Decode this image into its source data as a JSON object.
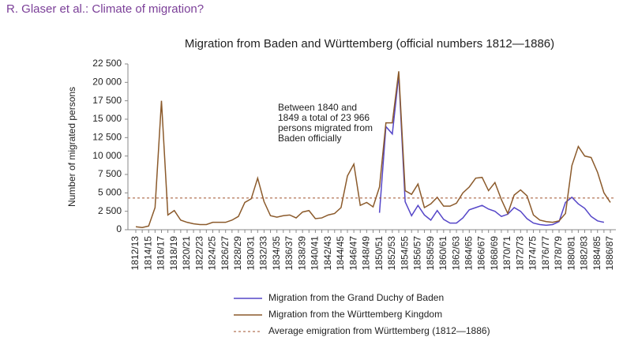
{
  "header": "R. Glaser et al.: Climate of migration?",
  "chart_data": {
    "type": "line",
    "title": "Migration from Baden and Württemberg (official numbers 1812—1886)",
    "y_label": "Number of migrated persons",
    "annotation": [
      "Between  1840 and",
      "1849 a total of 23 966",
      "persons migrated from",
      "Baden officially"
    ],
    "categories": [
      "1812/13",
      null,
      "1814/15",
      null,
      "1816/17",
      null,
      "1818/19",
      null,
      "1820/21",
      null,
      "1822/23",
      null,
      "1824/25",
      null,
      "1826/27",
      null,
      "1828/29",
      null,
      "1830/31",
      null,
      "1832/33",
      null,
      "1834/35",
      null,
      "1836/37",
      null,
      "1838/39",
      null,
      "1840/41",
      null,
      "1842/43",
      null,
      "1844/45",
      null,
      "1846/47",
      null,
      "1848/49",
      null,
      "1850/51",
      null,
      "1852/53",
      null,
      "1854/55",
      null,
      "1856/57",
      null,
      "1858/59",
      null,
      "1860/61",
      null,
      "1862/63",
      null,
      "1864/65",
      null,
      "1866/67",
      null,
      "1868/69",
      null,
      "1870/71",
      null,
      "1872/73",
      null,
      "1874/75",
      null,
      "1876/77",
      null,
      "1878/79",
      null,
      "1880/81",
      null,
      "1882/83",
      null,
      "1884/85",
      null,
      "1886/87"
    ],
    "series": [
      {
        "name": "Migration from the Grand Duchy of Baden",
        "color": "#5546c8",
        "values": [
          null,
          null,
          null,
          null,
          null,
          null,
          null,
          null,
          null,
          null,
          null,
          null,
          null,
          null,
          null,
          null,
          null,
          null,
          null,
          null,
          null,
          null,
          null,
          null,
          null,
          null,
          null,
          null,
          null,
          null,
          null,
          null,
          null,
          null,
          null,
          null,
          null,
          null,
          2300,
          14000,
          13000,
          21000,
          3800,
          1900,
          3300,
          2000,
          1300,
          2600,
          1400,
          900,
          900,
          1600,
          2700,
          3000,
          3300,
          2800,
          2500,
          1800,
          2100,
          3000,
          2500,
          1500,
          900,
          700,
          600,
          700,
          1100,
          3700,
          4400,
          3500,
          2900,
          1800,
          1200,
          1000,
          null
        ]
      },
      {
        "name": "Migration from the Württemberg Kingdom",
        "color": "#8b5a2b",
        "values": [
          400,
          300,
          500,
          3000,
          17500,
          2000,
          2600,
          1300,
          1000,
          800,
          700,
          700,
          1000,
          1000,
          1000,
          1300,
          1800,
          3700,
          4200,
          7000,
          3800,
          1900,
          1700,
          1900,
          2000,
          1600,
          2400,
          2600,
          1500,
          1600,
          2000,
          2200,
          3000,
          7300,
          8900,
          3300,
          3700,
          3100,
          5800,
          14500,
          14500,
          21500,
          5300,
          4800,
          6200,
          3000,
          3500,
          4400,
          3200,
          3200,
          3600,
          5000,
          5800,
          7000,
          7100,
          5300,
          6400,
          4100,
          2200,
          4700,
          5400,
          4600,
          2000,
          1300,
          1100,
          1000,
          1200,
          2200,
          8700,
          11300,
          10000,
          9800,
          7800,
          5000,
          3700
        ]
      }
    ],
    "average": 4300,
    "average_label": "Average emigration from Württemberg (1812—1886)",
    "average_color": "#a0522d",
    "ylim": [
      0,
      22500
    ],
    "yticks": [
      0,
      {
        "value": 2500,
        "label": "2 500"
      },
      {
        "value": 5000,
        "label": "5 000"
      },
      {
        "value": 7500,
        "label": "7 500"
      },
      {
        "value": 10000,
        "label": "10 000"
      },
      {
        "value": 12500,
        "label": "12 500"
      },
      {
        "value": 15000,
        "label": "15 000"
      },
      {
        "value": 17500,
        "label": "17 500"
      },
      {
        "value": 20000,
        "label": "20 000"
      },
      {
        "value": 22500,
        "label": "22 500"
      }
    ]
  }
}
